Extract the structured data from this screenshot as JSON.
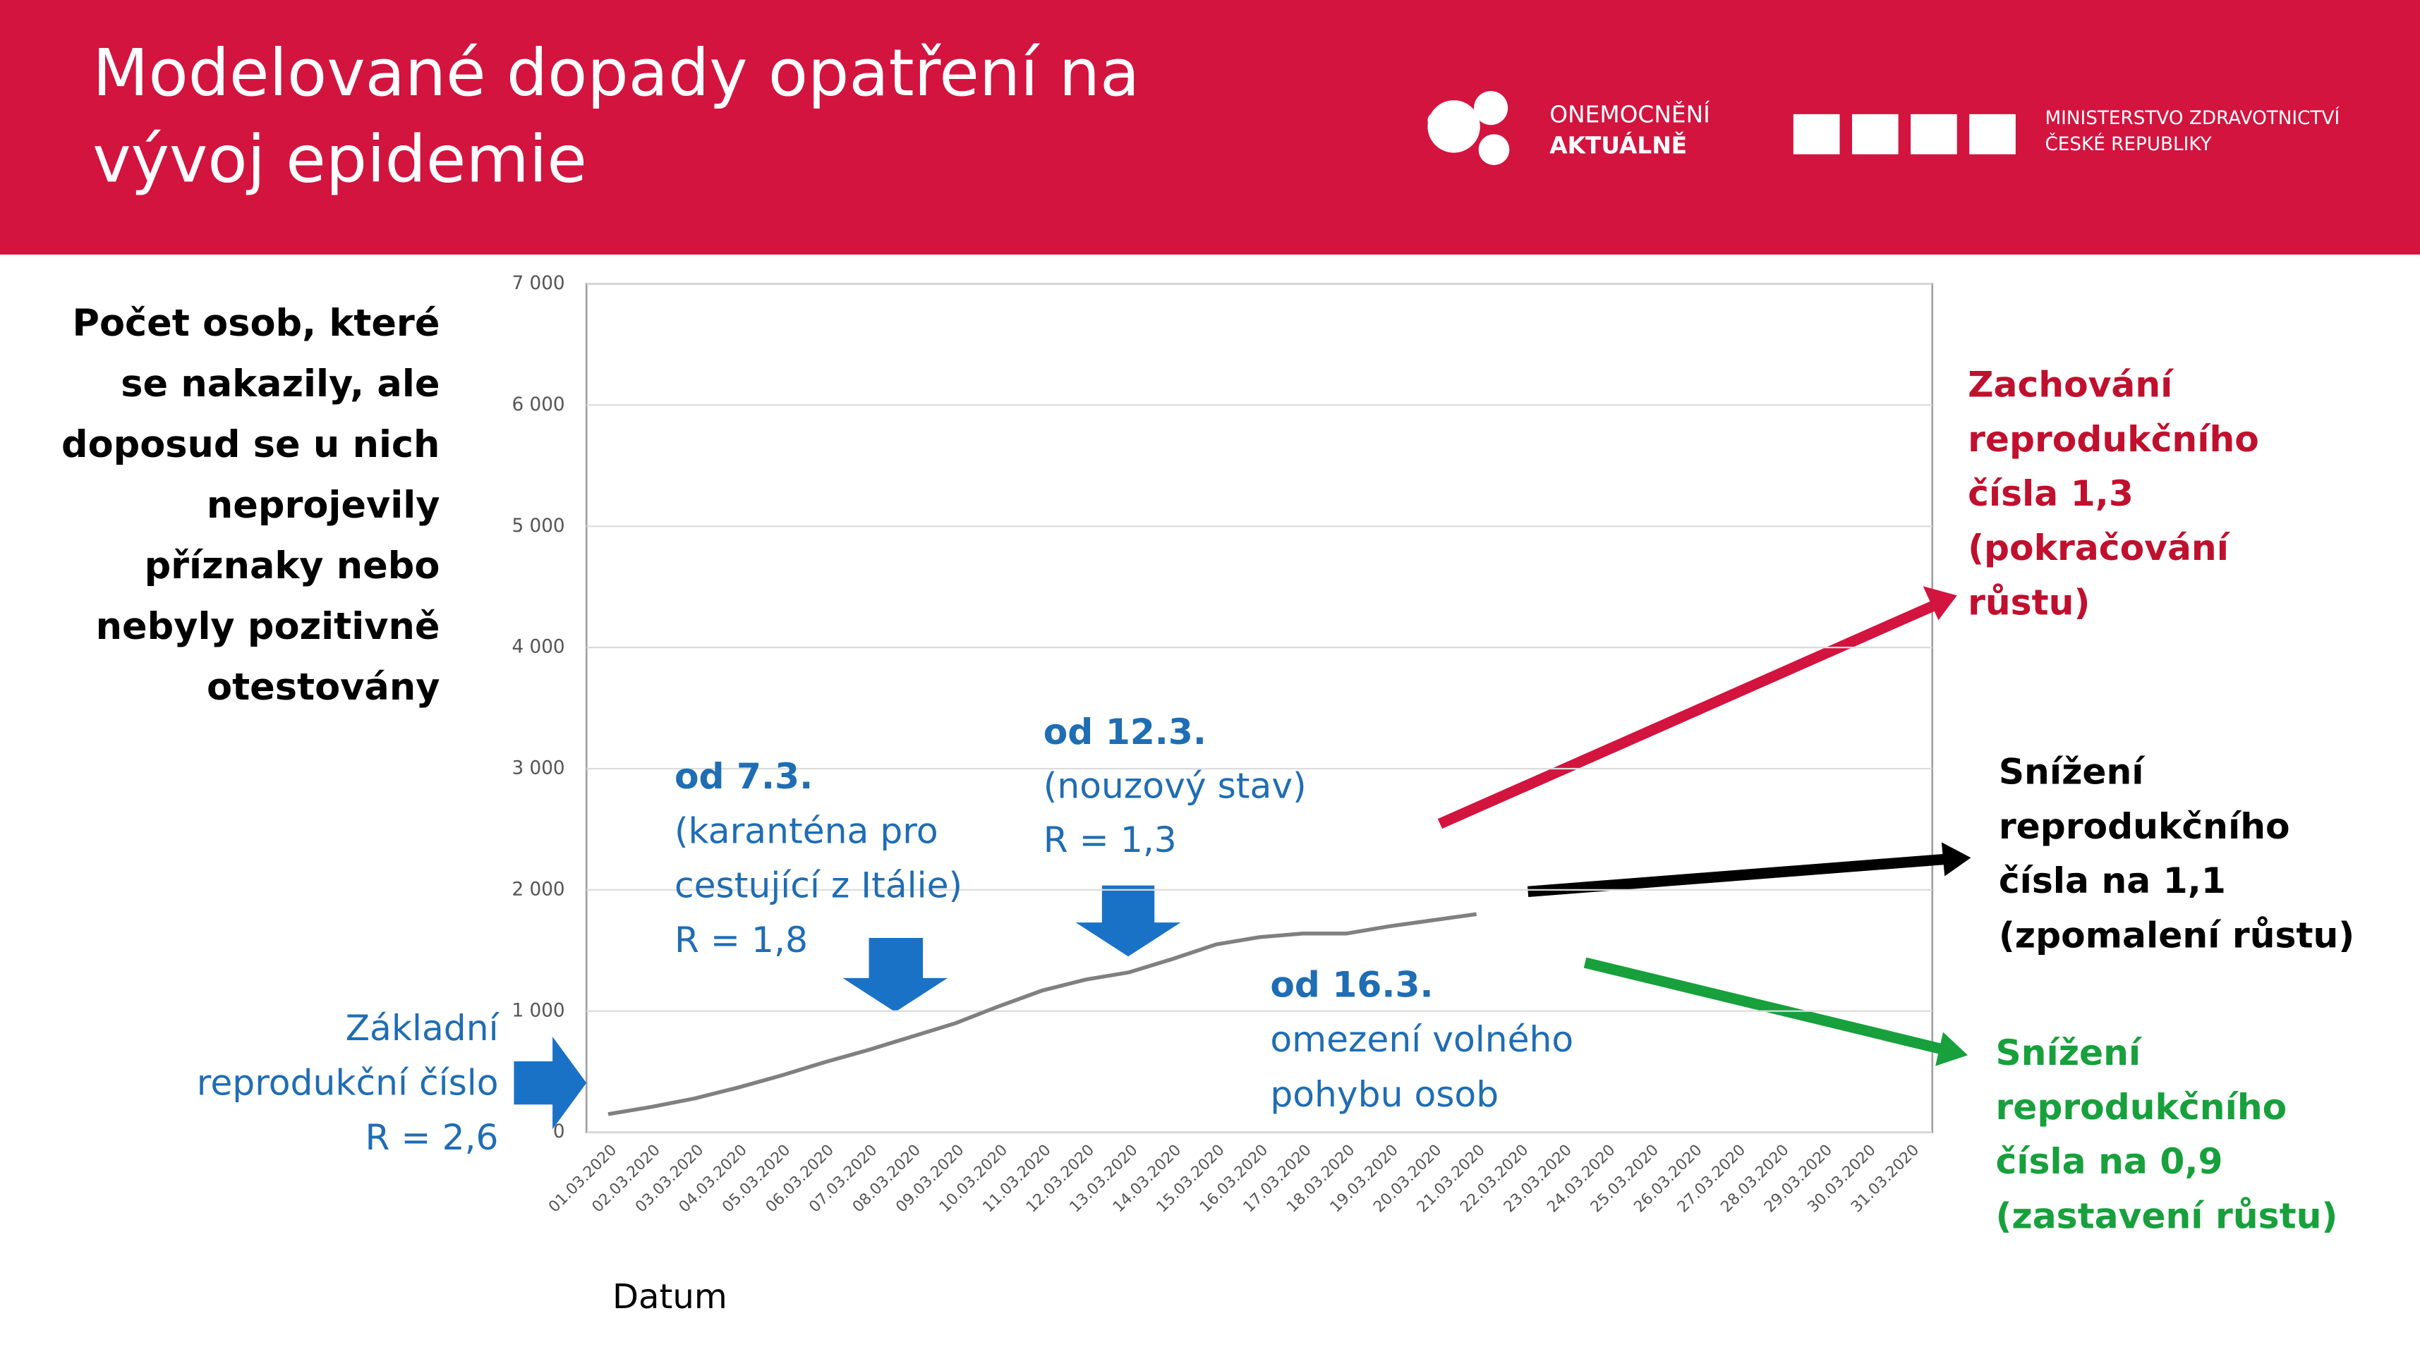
{
  "chart_data": {
    "type": "line",
    "title": "Modelované dopady opatření na vývoj epidemie",
    "title_lines": [
      "Modelované dopady opatření na",
      "vývoj epidemie"
    ],
    "header": {
      "logo1": [
        "ONEMOCNĚNÍ",
        "AKTUÁLNĚ"
      ],
      "logo2": [
        "MINISTERSTVO ZDRAVOTNICTVÍ",
        "ČESKÉ REPUBLIKY"
      ]
    },
    "ylabel_lines": [
      "Počet osob, které",
      "se nakazily, ale",
      "doposud se u nich",
      "neprojevily",
      "příznaky nebo",
      "nebyly pozitivně",
      "otestovány"
    ],
    "xlabel": "Datum",
    "categories": [
      "01.03.2020",
      "02.03.2020",
      "03.03.2020",
      "04.03.2020",
      "05.03.2020",
      "06.03.2020",
      "07.03.2020",
      "08.03.2020",
      "09.03.2020",
      "10.03.2020",
      "11.03.2020",
      "12.03.2020",
      "13.03.2020",
      "14.03.2020",
      "15.03.2020",
      "16.03.2020",
      "17.03.2020",
      "18.03.2020",
      "19.03.2020",
      "20.03.2020",
      "21.03.2020",
      "22.03.2020",
      "23.03.2020",
      "24.03.2020",
      "25.03.2020",
      "26.03.2020",
      "27.03.2020",
      "28.03.2020",
      "29.03.2020",
      "30.03.2020",
      "31.03.2020"
    ],
    "values": [
      150,
      210,
      280,
      370,
      470,
      580,
      680,
      790,
      900,
      1040,
      1170,
      1260,
      1320,
      1430,
      1550,
      1610,
      1640,
      1640,
      1700,
      1750,
      1800,
      null,
      null,
      null,
      null,
      null,
      null,
      null,
      null,
      null,
      null
    ],
    "color": "#808080",
    "ylim": [
      0,
      7000
    ],
    "yticks": [
      0,
      {
        "value": 1000,
        "label": "1 000"
      },
      {
        "value": 2000,
        "label": "2 000"
      },
      {
        "value": 3000,
        "label": "3 000"
      },
      {
        "value": 4000,
        "label": "4 000"
      },
      {
        "value": 5000,
        "label": "5 000"
      },
      {
        "value": 6000,
        "label": "6 000"
      },
      {
        "value": 7000,
        "label": "7 000"
      }
    ],
    "grid": true,
    "annotations": [
      {
        "lines": [
          "Základní",
          "reprodukční číslo",
          "R = 2,6"
        ],
        "color": "#1f6db3"
      },
      {
        "lines": [
          "od 7.3.",
          "(karanténa pro",
          "cestující z Itálie)",
          "R = 1,8"
        ],
        "color": "#1f6db3"
      },
      {
        "lines": [
          "od 12.3.",
          "(nouzový stav)",
          "R = 1,3"
        ],
        "color": "#1f6db3"
      },
      {
        "lines": [
          "od 16.3.",
          "omezení volného",
          "pohybu osob"
        ],
        "color": "#1f6db3"
      },
      {
        "lines": [
          "Zachování",
          "reprodukčního",
          "čísla 1,3",
          "(pokračování",
          "růstu)"
        ],
        "color": "#c0102e"
      },
      {
        "lines": [
          "Snížení",
          "reprodukčního",
          "čísla na 1,1",
          "(zpomalení růstu)"
        ],
        "color": "#000000"
      },
      {
        "lines": [
          "Snížení",
          "reprodukčního",
          "čísla na 0,9",
          "(zastavení růstu)"
        ],
        "color": "#17a03c"
      }
    ]
  }
}
